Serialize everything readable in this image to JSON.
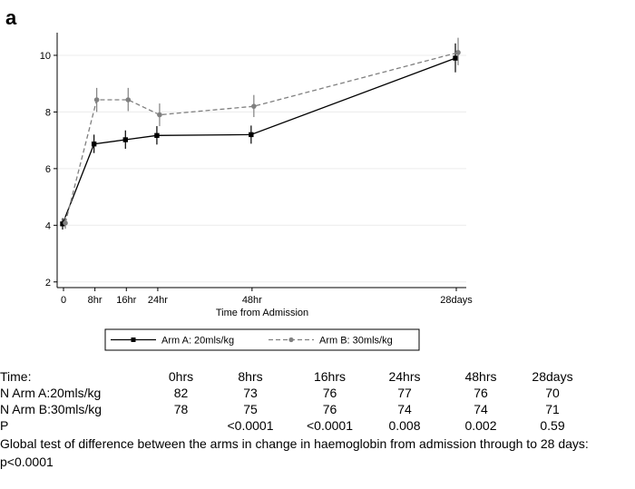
{
  "panel_label": "a",
  "chart_data": {
    "type": "line",
    "xlabel": "Time from Admission",
    "ylabel": "",
    "x_ticks": [
      {
        "value": 0,
        "label": "0"
      },
      {
        "value": 8,
        "label": "8hr"
      },
      {
        "value": 16,
        "label": "16hr"
      },
      {
        "value": 24,
        "label": "24hr"
      },
      {
        "value": 48,
        "label": "48hr"
      },
      {
        "value": 100,
        "label": "28days"
      }
    ],
    "y_ticks": [
      2,
      4,
      6,
      8,
      10
    ],
    "ylim": [
      1.8,
      10.8
    ],
    "grid": "horizontal",
    "legend_position": "bottom",
    "series": [
      {
        "name": "Arm A: 20mls/kg",
        "style": "solid",
        "marker": "square",
        "color": "#000000",
        "points": [
          {
            "x": 0,
            "label": "0",
            "y": 4.05,
            "lo": 3.85,
            "hi": 4.25
          },
          {
            "x": 8,
            "label": "8hr",
            "y": 6.87,
            "lo": 6.55,
            "hi": 7.2
          },
          {
            "x": 16,
            "label": "16hr",
            "y": 7.02,
            "lo": 6.7,
            "hi": 7.35
          },
          {
            "x": 24,
            "label": "24hr",
            "y": 7.17,
            "lo": 6.85,
            "hi": 7.5
          },
          {
            "x": 48,
            "label": "48hr",
            "y": 7.2,
            "lo": 6.88,
            "hi": 7.52
          },
          {
            "x": 100,
            "label": "28days",
            "y": 9.9,
            "lo": 9.4,
            "hi": 10.42
          }
        ]
      },
      {
        "name": "Arm B: 30mls/kg",
        "style": "dashed",
        "marker": "circle",
        "color": "#808080",
        "points": [
          {
            "x": 0,
            "label": "0",
            "y": 4.08,
            "lo": 3.88,
            "hi": 4.3
          },
          {
            "x": 8,
            "label": "8hr",
            "y": 8.43,
            "lo": 8.0,
            "hi": 8.85
          },
          {
            "x": 16,
            "label": "16hr",
            "y": 8.43,
            "lo": 8.03,
            "hi": 8.85
          },
          {
            "x": 24,
            "label": "24hr",
            "y": 7.9,
            "lo": 7.5,
            "hi": 8.3
          },
          {
            "x": 48,
            "label": "48hr",
            "y": 8.2,
            "lo": 7.82,
            "hi": 8.6
          },
          {
            "x": 100,
            "label": "28days",
            "y": 10.1,
            "lo": 9.65,
            "hi": 10.62
          }
        ]
      }
    ]
  },
  "numbers_table": {
    "rows": [
      {
        "label": "Time:",
        "cells": [
          "0hrs",
          "8hrs",
          "16hrs",
          "24hrs",
          "48hrs",
          "28days"
        ]
      },
      {
        "label": "N Arm A:20mls/kg",
        "cells": [
          "82",
          "73",
          "76",
          "77",
          "76",
          "70"
        ]
      },
      {
        "label": "N Arm B:30mls/kg",
        "cells": [
          "78",
          "75",
          "76",
          "74",
          "74",
          "71"
        ]
      },
      {
        "label": "P",
        "cells": [
          "",
          "<0.0001",
          "<0.0001",
          "0.008",
          "0.002",
          "0.59"
        ]
      }
    ]
  },
  "footnote": "Global test of difference between the arms in change in haemoglobin from admission through to 28 days: p<0.0001"
}
